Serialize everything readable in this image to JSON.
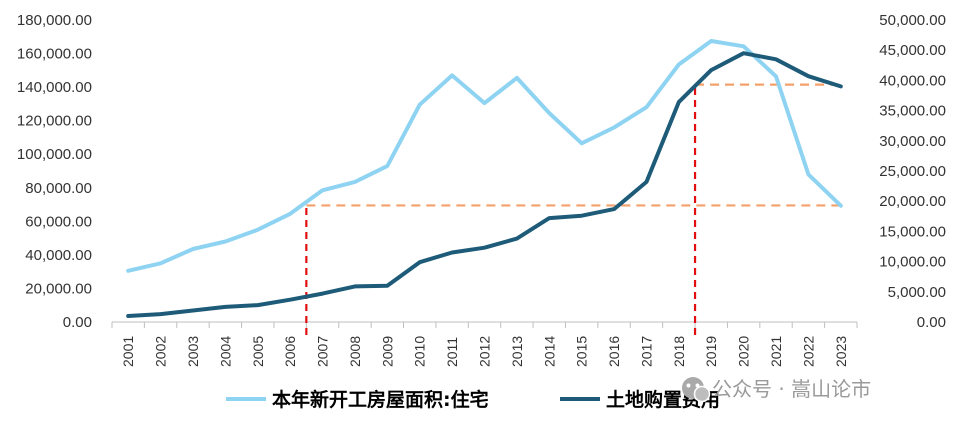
{
  "chart_data": {
    "type": "line",
    "categories": [
      "2001",
      "2002",
      "2003",
      "2004",
      "2005",
      "2006",
      "2007",
      "2008",
      "2009",
      "2010",
      "2011",
      "2012",
      "2013",
      "2014",
      "2015",
      "2016",
      "2017",
      "2018",
      "2019",
      "2020",
      "2021",
      "2022",
      "2023"
    ],
    "series": [
      {
        "name": "本年新开工房屋面积:住宅",
        "axis": "left",
        "color": "#8fd3f2",
        "values": [
          30500,
          35000,
          43500,
          48000,
          55000,
          64500,
          78500,
          83500,
          93000,
          129500,
          147000,
          130500,
          145500,
          124500,
          106500,
          115900,
          128000,
          153500,
          167500,
          164300,
          146400,
          88000,
          69300
        ]
      },
      {
        "name": "土地购置费用",
        "axis": "right",
        "color": "#1d5b79",
        "values": [
          1000,
          1300,
          1900,
          2500,
          2800,
          3700,
          4700,
          5900,
          6000,
          9900,
          11500,
          12300,
          13800,
          17200,
          17600,
          18700,
          23200,
          36400,
          41700,
          44500,
          43500,
          40700,
          39000
        ]
      }
    ],
    "left_axis": {
      "min": 0,
      "max": 180000,
      "ticks": [
        "0.00",
        "20,000.00",
        "40,000.00",
        "60,000.00",
        "80,000.00",
        "100,000.00",
        "120,000.00",
        "140,000.00",
        "160,000.00",
        "180,000.00"
      ]
    },
    "right_axis": {
      "min": 0,
      "max": 50000,
      "ticks": [
        "0.00",
        "5,000.00",
        "10,000.00",
        "15,000.00",
        "20,000.00",
        "25,000.00",
        "30,000.00",
        "35,000.00",
        "40,000.00",
        "45,000.00",
        "50,000.00"
      ]
    },
    "reference_lines": {
      "vertical_color": "#e01010",
      "horizontal_color": "#f4a06a",
      "verticals": [
        {
          "between": [
            "2006",
            "2007"
          ],
          "from_right_value": 0,
          "to_right_value": 19300
        },
        {
          "between": [
            "2018",
            "2019"
          ],
          "from_right_value": 0,
          "to_right_value": 39300
        }
      ],
      "horizontals": [
        {
          "from_between": [
            "2006",
            "2007"
          ],
          "to": "2023",
          "right_value": 19300
        },
        {
          "from_between": [
            "2018",
            "2019"
          ],
          "to": "2023",
          "right_value": 39300
        }
      ]
    },
    "legend_position": "bottom",
    "grid": false
  },
  "watermark": {
    "text": "公众号 · 嵩山论市",
    "icon": "wechat-icon"
  }
}
